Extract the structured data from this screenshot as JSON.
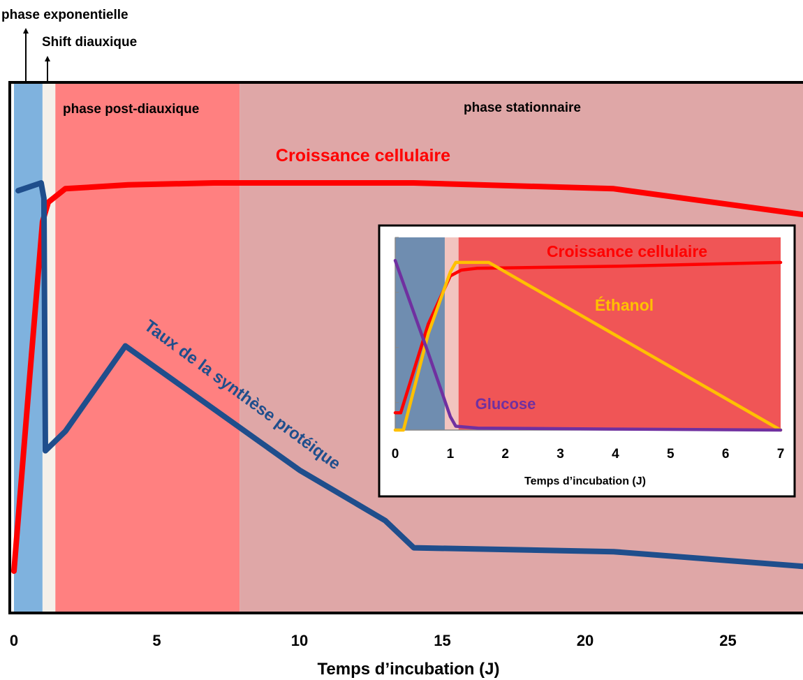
{
  "chart_data": [
    {
      "type": "line",
      "xlabel": "Temps d’incubation (J)",
      "xlim": [
        0,
        28
      ],
      "xticks": [
        0,
        5,
        10,
        15,
        20,
        25
      ],
      "phase_markers": [
        {
          "label": "phase exponentielle",
          "x": 0.4
        },
        {
          "label": "Shift diauxique",
          "x": 1.2
        }
      ],
      "phases": [
        {
          "name": "exponentielle",
          "label": "",
          "x_start": 0,
          "x_end": 1,
          "color": "#7fb2de"
        },
        {
          "name": "shift-diauxique",
          "label": "",
          "x_start": 1,
          "x_end": 1.45,
          "color": "#f5f0ea"
        },
        {
          "name": "post-diauxique",
          "label": "phase  post-diauxique",
          "x_start": 1.45,
          "x_end": 7.9,
          "color": "#ff8080"
        },
        {
          "name": "stationnaire",
          "label": "phase stationnaire",
          "x_start": 7.9,
          "x_end": 28,
          "color": "#dfa7a7"
        }
      ],
      "series": [
        {
          "name": "Croissance cellulaire",
          "color": "#ff0000",
          "x": [
            0,
            0.55,
            1.0,
            1.2,
            1.8,
            4,
            7,
            14,
            21,
            28
          ],
          "y": [
            0,
            0.5,
            0.9,
            0.95,
            0.985,
            0.995,
            1.0,
            1.0,
            0.985,
            0.915
          ]
        },
        {
          "name": "Taux de la synthèse protéique",
          "color": "#1f4e8c",
          "x": [
            0.15,
            0.95,
            1.05,
            1.1,
            1.8,
            3.9,
            10,
            13,
            14,
            21,
            28
          ],
          "y": [
            0.98,
            1.0,
            0.96,
            0.31,
            0.36,
            0.58,
            0.26,
            0.13,
            0.06,
            0.05,
            0.01
          ]
        }
      ]
    },
    {
      "type": "line",
      "xlabel": "Temps d’incubation  (J)",
      "xlim": [
        0,
        7
      ],
      "xticks": [
        0,
        1,
        2,
        3,
        4,
        5,
        6,
        7
      ],
      "phases": [
        {
          "name": "exponentielle",
          "x_start": 0,
          "x_end": 0.9,
          "color": "#6f8db0"
        },
        {
          "name": "shift-diauxique",
          "x_start": 0.9,
          "x_end": 1.15,
          "color": "#f2c4bf"
        },
        {
          "name": "post-diauxique",
          "x_start": 1.15,
          "x_end": 7,
          "color": "#f05556"
        }
      ],
      "series": [
        {
          "name": "Croissance cellulaire",
          "color": "#ff0000",
          "x": [
            0,
            0.1,
            0.6,
            1.0,
            1.2,
            1.5,
            4,
            7
          ],
          "y": [
            0.09,
            0.09,
            0.55,
            0.8,
            0.83,
            0.84,
            0.85,
            0.87
          ]
        },
        {
          "name": "Éthanol",
          "color": "#ffc000",
          "x": [
            0,
            0.15,
            0.6,
            1.0,
            1.1,
            1.7,
            7
          ],
          "y": [
            0.0,
            0.0,
            0.5,
            0.82,
            0.87,
            0.87,
            0.0
          ]
        },
        {
          "name": "Glucose",
          "color": "#7030a0",
          "x": [
            0,
            0.1,
            0.6,
            1.0,
            1.1,
            1.5,
            4,
            7
          ],
          "y": [
            0.88,
            0.8,
            0.4,
            0.07,
            0.02,
            0.01,
            0.005,
            0.0
          ]
        }
      ]
    }
  ]
}
